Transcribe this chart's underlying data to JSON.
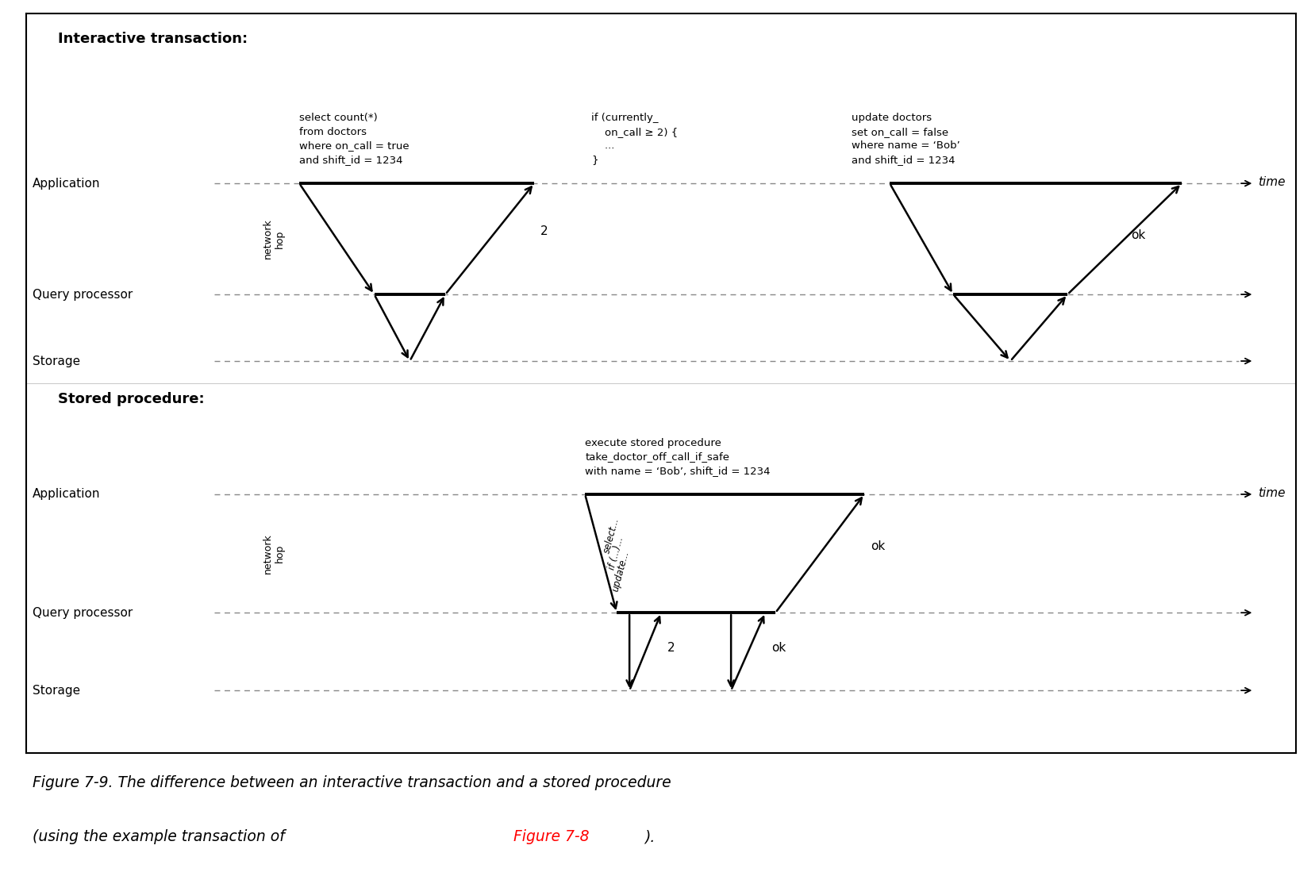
{
  "fig_width": 16.58,
  "fig_height": 11.04,
  "background_color": "#ffffff",
  "border_color": "#000000",
  "dashed_line_color": "#888888",
  "title1": "Interactive transaction:",
  "title2": "Stored procedure:",
  "caption_line1": "Figure 7-9. The difference between an interactive transaction and a stored procedure",
  "caption_line2_a": "(using the example transaction of ",
  "caption_line2_b": "Figure 7-8",
  "caption_line2_c": ").",
  "it_code1": "select count(*)\nfrom doctors\nwhere on_call = true\nand shift_id = 1234",
  "it_code2": "if (currently_\n    on_call ≥ 2) {\n    ...\n}",
  "it_code3": "update doctors\nset on_call = false\nwhere name = ‘Bob’\nand shift_id = 1234",
  "sp_code": "execute stored procedure\ntake_doctor_off_call_if_safe\nwith name = ‘Bob’, shift_id = 1234"
}
